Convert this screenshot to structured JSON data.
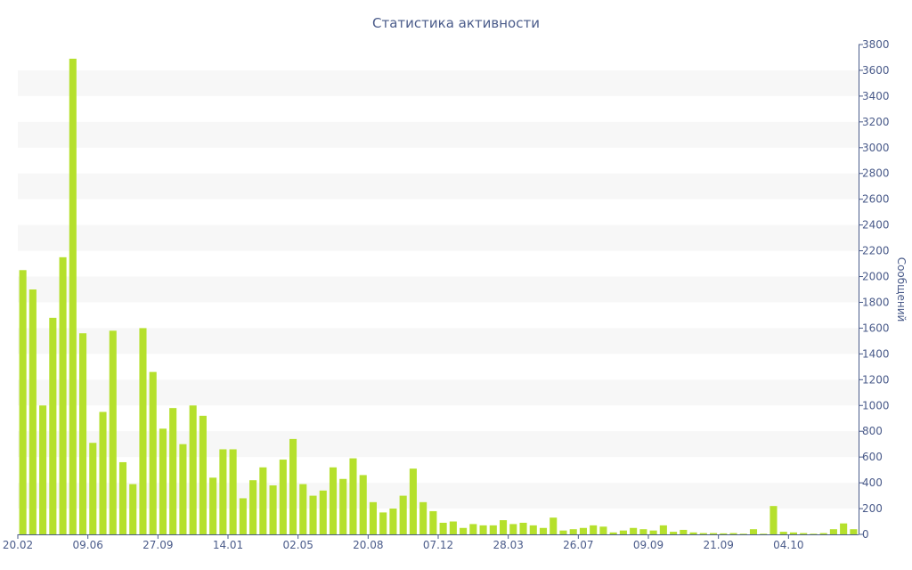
{
  "chart_data": {
    "type": "bar",
    "title": "Статистика активности",
    "ylabel": "Сообщений",
    "xlabel": "",
    "ylim": [
      0,
      3800
    ],
    "y_ticks": [
      0,
      200,
      400,
      600,
      800,
      1000,
      1200,
      1400,
      1600,
      1800,
      2000,
      2200,
      2400,
      2600,
      2800,
      3000,
      3200,
      3400,
      3600,
      3800
    ],
    "x_ticks": [
      {
        "label": "20.02",
        "index": 0
      },
      {
        "label": "09.06",
        "index": 7
      },
      {
        "label": "27.09",
        "index": 14
      },
      {
        "label": "14.01",
        "index": 21
      },
      {
        "label": "02.05",
        "index": 28
      },
      {
        "label": "20.08",
        "index": 35
      },
      {
        "label": "07.12",
        "index": 42
      },
      {
        "label": "28.03",
        "index": 49
      },
      {
        "label": "26.07",
        "index": 56
      },
      {
        "label": "09.09",
        "index": 63
      },
      {
        "label": "21.09",
        "index": 70
      },
      {
        "label": "04.10",
        "index": 77
      }
    ],
    "values": [
      2050,
      1900,
      1000,
      1680,
      2150,
      3690,
      1560,
      710,
      950,
      1580,
      560,
      390,
      1600,
      1260,
      820,
      980,
      700,
      1000,
      920,
      440,
      660,
      660,
      280,
      420,
      520,
      380,
      580,
      740,
      390,
      300,
      340,
      520,
      430,
      590,
      460,
      250,
      170,
      200,
      300,
      510,
      250,
      180,
      90,
      100,
      50,
      80,
      70,
      70,
      110,
      80,
      90,
      70,
      50,
      130,
      30,
      40,
      50,
      70,
      60,
      15,
      30,
      50,
      40,
      30,
      70,
      20,
      35,
      15,
      10,
      10,
      8,
      10,
      5,
      40,
      5,
      220,
      20,
      15,
      10,
      5,
      10,
      40,
      85,
      40
    ],
    "colors": {
      "bar": "#b5e02c",
      "band": "#f7f7f7",
      "axis": "#4a5b8a",
      "text": "#4a5b8a"
    },
    "grid": "alternating-bands"
  }
}
